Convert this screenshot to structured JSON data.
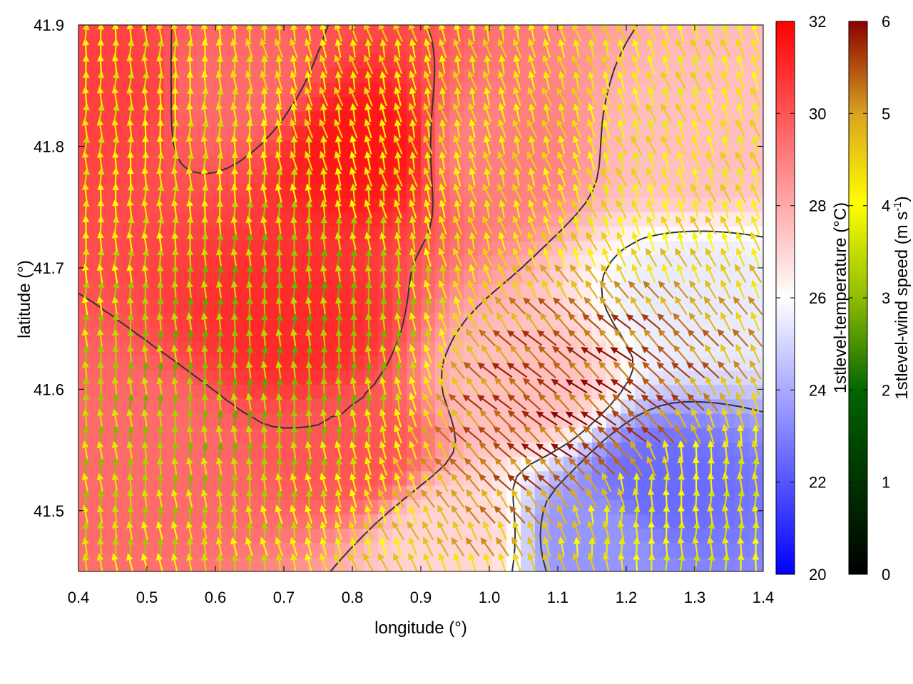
{
  "chart_data": {
    "type": "heatmap",
    "subtype": "temperature field with wind vectors and contours",
    "title": "",
    "xlabel": "longitude (°)",
    "ylabel": "latitude (°)",
    "xlim": [
      0.4,
      1.4
    ],
    "ylim": [
      41.45,
      41.9
    ],
    "x_ticks": [
      "0.4",
      "0.5",
      "0.6",
      "0.7",
      "0.8",
      "0.9",
      "1.0",
      "1.1",
      "1.2",
      "1.3",
      "1.4"
    ],
    "y_ticks": [
      "41.5",
      "41.6",
      "41.7",
      "41.8",
      "41.9"
    ],
    "x_tick_values": [
      0.4,
      0.5,
      0.6,
      0.7,
      0.8,
      0.9,
      1.0,
      1.1,
      1.2,
      1.3,
      1.4
    ],
    "y_tick_values": [
      41.5,
      41.6,
      41.7,
      41.8,
      41.9
    ],
    "temperature_colorbar": {
      "label": "1stlevel-temperature (°C)",
      "range": [
        20,
        32
      ],
      "ticks": [
        "20",
        "22",
        "24",
        "26",
        "28",
        "30",
        "32"
      ],
      "tick_values": [
        20,
        22,
        24,
        26,
        28,
        30,
        32
      ],
      "colors": [
        "#0000ff",
        "#ffffff",
        "#ff0000"
      ]
    },
    "wind_colorbar": {
      "label_main": "1stlevel-wind speed (m s",
      "label_sup": "-1",
      "label_end": ")",
      "range": [
        0,
        6
      ],
      "ticks": [
        "0",
        "1",
        "2",
        "3",
        "4",
        "5",
        "6"
      ],
      "tick_values": [
        0,
        1,
        2,
        3,
        4,
        5,
        6
      ],
      "colors": [
        "#000000",
        "#006400",
        "#8fbc00",
        "#ffff00",
        "#daa520",
        "#8b0000"
      ]
    },
    "temperature_field_points": [
      {
        "lon": 0.45,
        "lat": 41.85,
        "temp": 30.5
      },
      {
        "lon": 0.62,
        "lat": 41.85,
        "temp": 29.5
      },
      {
        "lon": 0.82,
        "lat": 41.8,
        "temp": 31.5
      },
      {
        "lon": 0.72,
        "lat": 41.65,
        "temp": 31.0
      },
      {
        "lon": 0.5,
        "lat": 41.55,
        "temp": 29.5
      },
      {
        "lon": 0.8,
        "lat": 41.55,
        "temp": 30.0
      },
      {
        "lon": 1.0,
        "lat": 41.8,
        "temp": 29.0
      },
      {
        "lon": 1.3,
        "lat": 41.8,
        "temp": 27.5
      },
      {
        "lon": 1.3,
        "lat": 41.68,
        "temp": 25.5
      },
      {
        "lon": 1.05,
        "lat": 41.6,
        "temp": 27.5
      },
      {
        "lon": 1.25,
        "lat": 41.52,
        "temp": 22.5
      },
      {
        "lon": 1.15,
        "lat": 41.48,
        "temp": 23.5
      },
      {
        "lon": 0.95,
        "lat": 41.48,
        "temp": 27.0
      }
    ],
    "wind_field_points": [
      {
        "lon": 0.45,
        "lat": 41.8,
        "speed": 3.5,
        "dir_deg": 90
      },
      {
        "lon": 0.7,
        "lat": 41.65,
        "speed": 2.5,
        "dir_deg": 90
      },
      {
        "lon": 0.9,
        "lat": 41.85,
        "speed": 3.8,
        "dir_deg": 105
      },
      {
        "lon": 1.2,
        "lat": 41.8,
        "speed": 3.8,
        "dir_deg": 110
      },
      {
        "lon": 1.15,
        "lat": 41.58,
        "speed": 5.5,
        "dir_deg": 140
      },
      {
        "lon": 1.3,
        "lat": 41.5,
        "speed": 3.5,
        "dir_deg": 90
      }
    ]
  }
}
